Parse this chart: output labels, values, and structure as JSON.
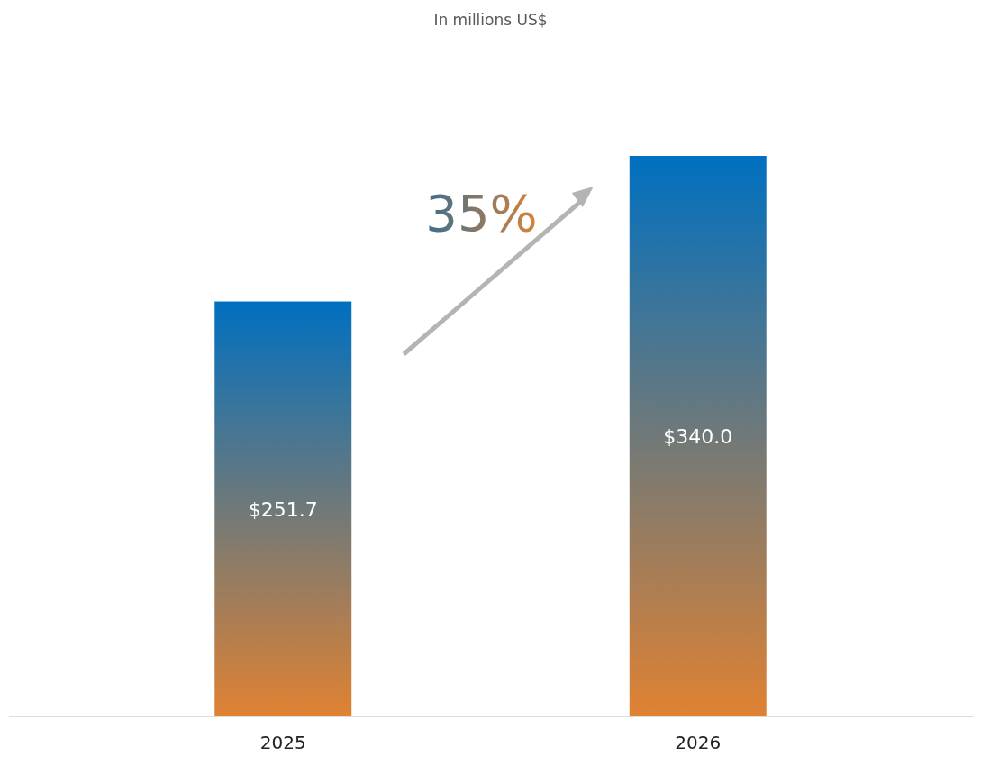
{
  "chart_data": {
    "type": "bar",
    "subtitle": "In millions US$",
    "categories": [
      "2025",
      "2026"
    ],
    "series": [
      {
        "color": "#0070c0",
        "values": [
          251.7,
          340.0
        ],
        "value_labels": [
          "$251.7",
          "$340.0"
        ]
      }
    ],
    "annotations": [
      "35%"
    ]
  }
}
